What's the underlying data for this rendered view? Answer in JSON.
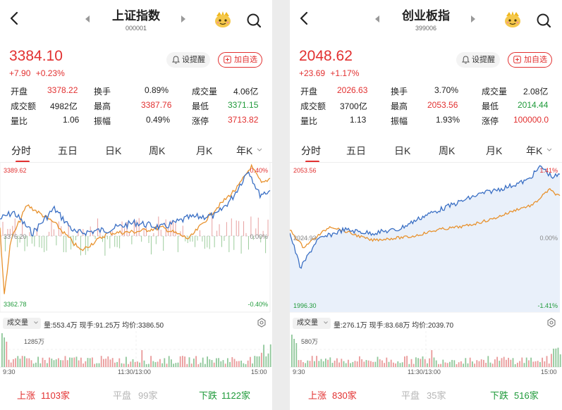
{
  "panels": [
    {
      "title": "上证指数",
      "code": "000001",
      "price": "3384.10",
      "change": "+7.90",
      "change_pct": "+0.23%",
      "alert_label": "设提醒",
      "watch_label": "加自选",
      "stats": [
        [
          {
            "label": "开盘",
            "value": "3378.22",
            "color": "red"
          },
          {
            "label": "换手",
            "value": "0.89%",
            "color": "dark"
          },
          {
            "label": "成交量",
            "value": "4.06亿",
            "color": "dark"
          }
        ],
        [
          {
            "label": "成交额",
            "value": "4982亿",
            "color": "dark"
          },
          {
            "label": "最高",
            "value": "3387.76",
            "color": "red"
          },
          {
            "label": "最低",
            "value": "3371.15",
            "color": "green"
          }
        ],
        [
          {
            "label": "量比",
            "value": "1.06",
            "color": "dark"
          },
          {
            "label": "振幅",
            "value": "0.49%",
            "color": "dark"
          },
          {
            "label": "涨停",
            "value": "3713.82",
            "color": "red"
          }
        ]
      ],
      "tabs": [
        "分时",
        "五日",
        "日K",
        "周K",
        "月K",
        "年K"
      ],
      "chart": {
        "y_high": "3389.62",
        "y_mid": "3376.20",
        "y_low": "3362.78",
        "pct_high": "0.40%",
        "pct_mid": "0.00%",
        "pct_low": "-0.40%"
      },
      "volume": {
        "selector": "成交量",
        "info": "量:553.4万  现手:91.25万  均价:3386.50",
        "max": "1285万"
      },
      "time_labels": [
        "9:30",
        "11:30/13:00",
        "15:00"
      ],
      "breadth": {
        "up_label": "上涨",
        "up_value": "1103家",
        "flat_label": "平盘",
        "flat_value": "99家",
        "down_label": "下跌",
        "down_value": "1122家"
      }
    },
    {
      "title": "创业板指",
      "code": "399006",
      "price": "2048.62",
      "change": "+23.69",
      "change_pct": "+1.17%",
      "alert_label": "设提醒",
      "watch_label": "加自选",
      "stats": [
        [
          {
            "label": "开盘",
            "value": "2026.63",
            "color": "red"
          },
          {
            "label": "换手",
            "value": "3.70%",
            "color": "dark"
          },
          {
            "label": "成交量",
            "value": "2.08亿",
            "color": "dark"
          }
        ],
        [
          {
            "label": "成交额",
            "value": "3700亿",
            "color": "dark"
          },
          {
            "label": "最高",
            "value": "2053.56",
            "color": "red"
          },
          {
            "label": "最低",
            "value": "2014.44",
            "color": "green"
          }
        ],
        [
          {
            "label": "量比",
            "value": "1.13",
            "color": "dark"
          },
          {
            "label": "振幅",
            "value": "1.93%",
            "color": "dark"
          },
          {
            "label": "涨停",
            "value": "100000.0",
            "color": "red"
          }
        ]
      ],
      "tabs": [
        "分时",
        "五日",
        "日K",
        "周K",
        "月K",
        "年K"
      ],
      "chart": {
        "y_high": "2053.56",
        "y_mid": "2024.93",
        "y_low": "1996.30",
        "pct_high": "1.41%",
        "pct_mid": "0.00%",
        "pct_low": "-1.41%"
      },
      "volume": {
        "selector": "成交量",
        "info": "量:276.1万  现手:83.68万  均价:2039.70",
        "max": "580万"
      },
      "time_labels": [
        "9:30",
        "11:30/13:00",
        "15:00"
      ],
      "breadth": {
        "up_label": "上涨",
        "up_value": "830家",
        "flat_label": "平盘",
        "flat_value": "35家",
        "down_label": "下跌",
        "down_value": "516家"
      }
    }
  ],
  "colors": {
    "red": "#e23030",
    "green": "#1f9a3a",
    "price_line": "#3a6fc4",
    "avg_line": "#e8922e",
    "flat": "#b5b5b5"
  }
}
